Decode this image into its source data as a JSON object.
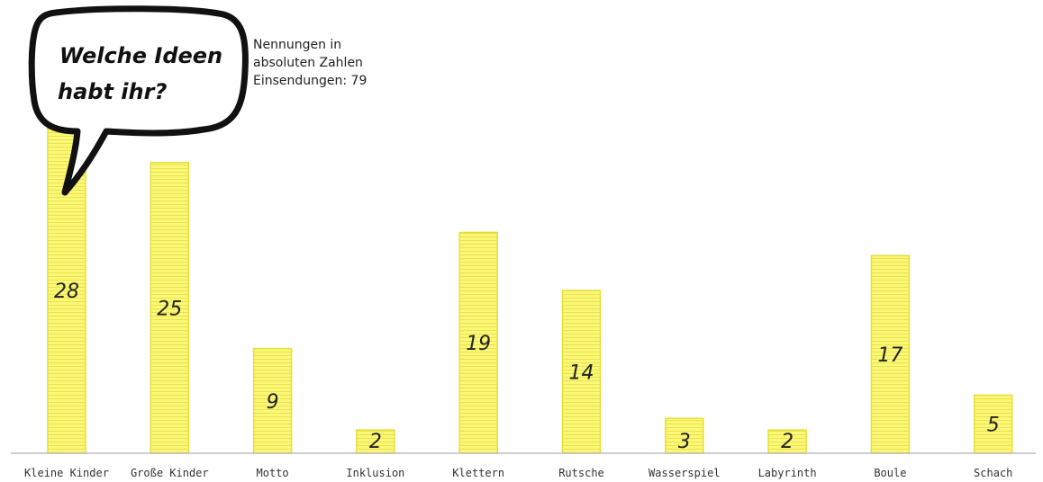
{
  "bubble": {
    "line1": "Welche Ideen",
    "line2": "habt ihr?"
  },
  "note": {
    "line1": "Nennungen in",
    "line2": "absoluten Zahlen",
    "line3": "Einsendungen: 79"
  },
  "chart_data": {
    "type": "bar",
    "categories": [
      "Kleine Kinder",
      "Große Kinder",
      "Motto",
      "Inklusion",
      "Klettern",
      "Rutsche",
      "Wasserspiel",
      "Labyrinth",
      "Boule",
      "Schach"
    ],
    "values": [
      28,
      25,
      9,
      2,
      19,
      14,
      3,
      2,
      17,
      5
    ],
    "title": "",
    "xlabel": "",
    "ylabel": "",
    "ylim": [
      0,
      28
    ],
    "grid": false,
    "legend": "none",
    "colors": {
      "bar_fill": "#fbf777",
      "bar_stroke": "#e6df3a",
      "bar_stripe": "#e9e34f",
      "axis": "#bdbdbd"
    }
  }
}
